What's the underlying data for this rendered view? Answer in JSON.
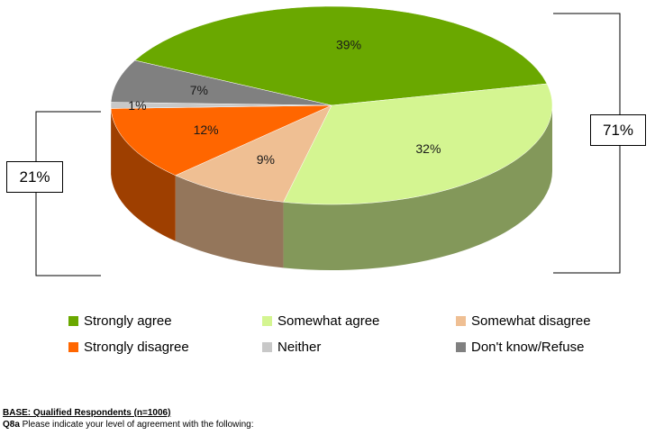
{
  "chart_data": {
    "type": "pie",
    "title": "",
    "slices": [
      {
        "label": "Strongly agree",
        "value": 39,
        "display": "39%",
        "color": "#6aa800"
      },
      {
        "label": "Somewhat agree",
        "value": 32,
        "display": "32%",
        "color": "#d4f591"
      },
      {
        "label": "Somewhat disagree",
        "value": 9,
        "display": "9%",
        "color": "#efbf93"
      },
      {
        "label": "Strongly disagree",
        "value": 12,
        "display": "12%",
        "color": "#ff6600"
      },
      {
        "label": "Neither",
        "value": 1,
        "display": "1%",
        "color": "#c8c8c8"
      },
      {
        "label": "Don't know/Refuse",
        "value": 7,
        "display": "7%",
        "color": "#808080"
      }
    ],
    "brackets": {
      "agree_total": "71%",
      "disagree_total": "21%"
    },
    "legend_position": "bottom"
  },
  "legend": [
    {
      "label": "Strongly agree",
      "color": "#6aa800"
    },
    {
      "label": "Somewhat agree",
      "color": "#d4f591"
    },
    {
      "label": "Somewhat disagree",
      "color": "#efbf93"
    },
    {
      "label": "Strongly disagree",
      "color": "#ff6600"
    },
    {
      "label": "Neither",
      "color": "#c8c8c8"
    },
    {
      "label": "Don't know/Refuse",
      "color": "#808080"
    }
  ],
  "footer": {
    "base": "BASE: Qualified Respondents (n=1006)",
    "question_code": "Q8a",
    "question_text": " Please indicate your level of agreement with the following:"
  }
}
